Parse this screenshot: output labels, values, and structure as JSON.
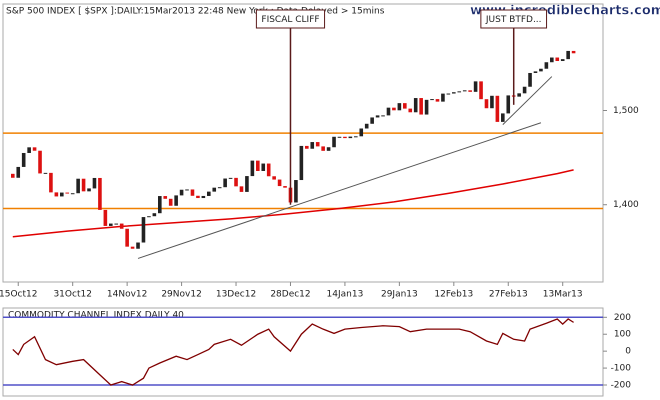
{
  "header": {
    "title": "S&P 500 INDEX [ $SPX ]:DAILY:15Mar2013 22:48 New York : Data Delayed > 15mins",
    "site": "www.incrediblecharts.com"
  },
  "chart_data": [
    {
      "type": "candlestick",
      "x": [
        0,
        1,
        2,
        3,
        4,
        5,
        6,
        7,
        8,
        9,
        10,
        11,
        12,
        13,
        14,
        15,
        16,
        17,
        18,
        19,
        20,
        21,
        22,
        23,
        24,
        25,
        26,
        27,
        28,
        29,
        30,
        31,
        32,
        33,
        34,
        35,
        36,
        37,
        38,
        39,
        40,
        41,
        42,
        43,
        44,
        45,
        46,
        47,
        48,
        49,
        50,
        51,
        52,
        53,
        54,
        55,
        56,
        57,
        58,
        59,
        60,
        61,
        62,
        63,
        64,
        65,
        66,
        67,
        68,
        69,
        70,
        71,
        72,
        73,
        74,
        75,
        76,
        77,
        78,
        79,
        80,
        81,
        82,
        83,
        84,
        85,
        86,
        87,
        88,
        89,
        90,
        91,
        92,
        93,
        94,
        95,
        96,
        97,
        98,
        99,
        100,
        101,
        102,
        103
      ],
      "open": [
        1432.8,
        1428.6,
        1440.1,
        1454.9,
        1460.9,
        1457.3,
        1433.2,
        1433.8,
        1413.1,
        1408.8,
        1412.9,
        1411.9,
        1412.2,
        1427.6,
        1414.2,
        1417.3,
        1428.4,
        1394.5,
        1377.5,
        1380.0,
        1380.0,
        1374.5,
        1355.5,
        1353.3,
        1359.9,
        1386.9,
        1387.8,
        1391.0,
        1409.2,
        1406.3,
        1398.9,
        1409.9,
        1415.9,
        1416.2,
        1409.5,
        1407.1,
        1409.3,
        1413.9,
        1418.1,
        1418.6,
        1427.8,
        1428.5,
        1419.5,
        1413.6,
        1430.4,
        1446.8,
        1435.8,
        1443.7,
        1430.2,
        1426.7,
        1419.8,
        1418.1,
        1402.4,
        1426.2,
        1462.4,
        1459.4,
        1466.5,
        1461.9,
        1457.2,
        1461.0,
        1472.1,
        1472.1,
        1470.7,
        1472.3,
        1472.6,
        1480.9,
        1485.9,
        1492.6,
        1494.8,
        1494.8,
        1503.0,
        1500.2,
        1507.8,
        1502.0,
        1498.1,
        1513.2,
        1495.7,
        1511.3,
        1512.1,
        1509.4,
        1517.9,
        1518.0,
        1519.4,
        1520.3,
        1521.4,
        1519.8,
        1530.9,
        1512.0,
        1502.4,
        1515.6,
        1487.9,
        1496.9,
        1516.0,
        1514.7,
        1518.2,
        1525.2,
        1539.8,
        1541.5,
        1544.3,
        1551.2,
        1556.2,
        1552.5,
        1554.5,
        1563.2
      ],
      "close": [
        1428.6,
        1440.1,
        1454.9,
        1460.9,
        1457.3,
        1433.2,
        1433.8,
        1413.1,
        1408.8,
        1412.9,
        1411.9,
        1412.2,
        1427.6,
        1414.2,
        1417.3,
        1428.4,
        1394.5,
        1377.5,
        1380.0,
        1380.0,
        1374.5,
        1355.5,
        1353.3,
        1359.9,
        1386.9,
        1387.8,
        1391.0,
        1409.2,
        1406.3,
        1398.9,
        1409.9,
        1415.9,
        1416.2,
        1409.5,
        1407.1,
        1409.3,
        1413.9,
        1418.1,
        1418.6,
        1427.8,
        1428.5,
        1419.5,
        1413.6,
        1430.4,
        1446.8,
        1435.8,
        1443.7,
        1430.2,
        1426.7,
        1419.8,
        1418.1,
        1402.4,
        1426.2,
        1462.4,
        1459.4,
        1466.5,
        1461.9,
        1457.2,
        1461.0,
        1472.1,
        1472.1,
        1470.7,
        1472.3,
        1472.6,
        1480.9,
        1485.9,
        1492.6,
        1494.8,
        1494.8,
        1503.0,
        1500.2,
        1507.8,
        1502.0,
        1498.1,
        1513.2,
        1495.7,
        1511.3,
        1512.1,
        1509.4,
        1517.9,
        1518.0,
        1519.4,
        1520.3,
        1521.4,
        1519.8,
        1530.9,
        1512.0,
        1502.4,
        1515.6,
        1487.9,
        1496.9,
        1516.0,
        1514.7,
        1518.2,
        1525.2,
        1539.8,
        1541.5,
        1544.3,
        1551.2,
        1556.2,
        1552.5,
        1554.5,
        1563.2,
        1560.7
      ],
      "up_color": "#222222",
      "down_color": "#dd1111",
      "xlim": [
        -1.8,
        108.4
      ],
      "ylim": [
        1318,
        1613
      ],
      "xticks": [
        {
          "value": 1,
          "label": "15Oct12"
        },
        {
          "value": 11,
          "label": "31Oct12"
        },
        {
          "value": 21,
          "label": "14Nov12"
        },
        {
          "value": 31,
          "label": "29Nov12"
        },
        {
          "value": 41,
          "label": "13Dec12"
        },
        {
          "value": 51,
          "label": "28Dec12"
        },
        {
          "value": 61,
          "label": "14Jan13"
        },
        {
          "value": 71,
          "label": "29Jan13"
        },
        {
          "value": 81,
          "label": "12Feb13"
        },
        {
          "value": 91,
          "label": "27Feb13"
        },
        {
          "value": 101,
          "label": "13Mar13"
        }
      ],
      "yticks": [
        {
          "value": 1400,
          "label": "1,400"
        },
        {
          "value": 1500,
          "label": "1,500"
        }
      ],
      "ma": {
        "color": "#e00000",
        "x": [
          0,
          10,
          20,
          30,
          40,
          50,
          60,
          70,
          80,
          90,
          100,
          103
        ],
        "values": [
          1366,
          1372,
          1377,
          1381,
          1385,
          1390,
          1396,
          1403,
          1412,
          1422,
          1433,
          1437
        ]
      },
      "trendlines": [
        {
          "color": "#555555",
          "x": [
            23,
            97
          ],
          "values": [
            1343,
            1487
          ]
        },
        {
          "color": "#555555",
          "x": [
            90,
            99
          ],
          "values": [
            1485,
            1536
          ]
        }
      ],
      "levels": [
        {
          "value": 1476,
          "color": "#f08000"
        },
        {
          "value": 1396,
          "color": "#f08000"
        }
      ],
      "annotations": [
        {
          "text": "FISCAL CLIFF",
          "x": 51,
          "value": 1400
        },
        {
          "text": "JUST BTFD...",
          "x": 92,
          "value": 1506
        }
      ]
    },
    {
      "type": "line",
      "title": "COMMODITY CHANNEL INDEX DAILY 40",
      "color": "#800000",
      "x": [
        0,
        1,
        2,
        4,
        6,
        8,
        11,
        13,
        16,
        18,
        20,
        22,
        24,
        25,
        27,
        30,
        32,
        34,
        36,
        37,
        40,
        42,
        45,
        47,
        48,
        51,
        53,
        55,
        57,
        59,
        61,
        64,
        68,
        71,
        73,
        76,
        79,
        82,
        84,
        87,
        89,
        90,
        92,
        94,
        95,
        98,
        100,
        101,
        102,
        103
      ],
      "values": [
        10,
        -20,
        40,
        85,
        -50,
        -80,
        -60,
        -50,
        -140,
        -200,
        -180,
        -200,
        -160,
        -100,
        -70,
        -30,
        -50,
        -20,
        10,
        40,
        70,
        35,
        100,
        130,
        85,
        0,
        100,
        160,
        130,
        105,
        130,
        140,
        150,
        145,
        115,
        130,
        130,
        130,
        115,
        60,
        40,
        105,
        70,
        60,
        130,
        165,
        190,
        160,
        190,
        170
      ],
      "xlim": [
        -1.8,
        108.4
      ],
      "ylim": [
        -265,
        255
      ],
      "yticks": [
        200,
        100,
        0,
        -100,
        -200
      ],
      "levels": [
        {
          "value": 200,
          "color": "#5050c8"
        },
        {
          "value": -200,
          "color": "#5050c8"
        }
      ]
    }
  ]
}
